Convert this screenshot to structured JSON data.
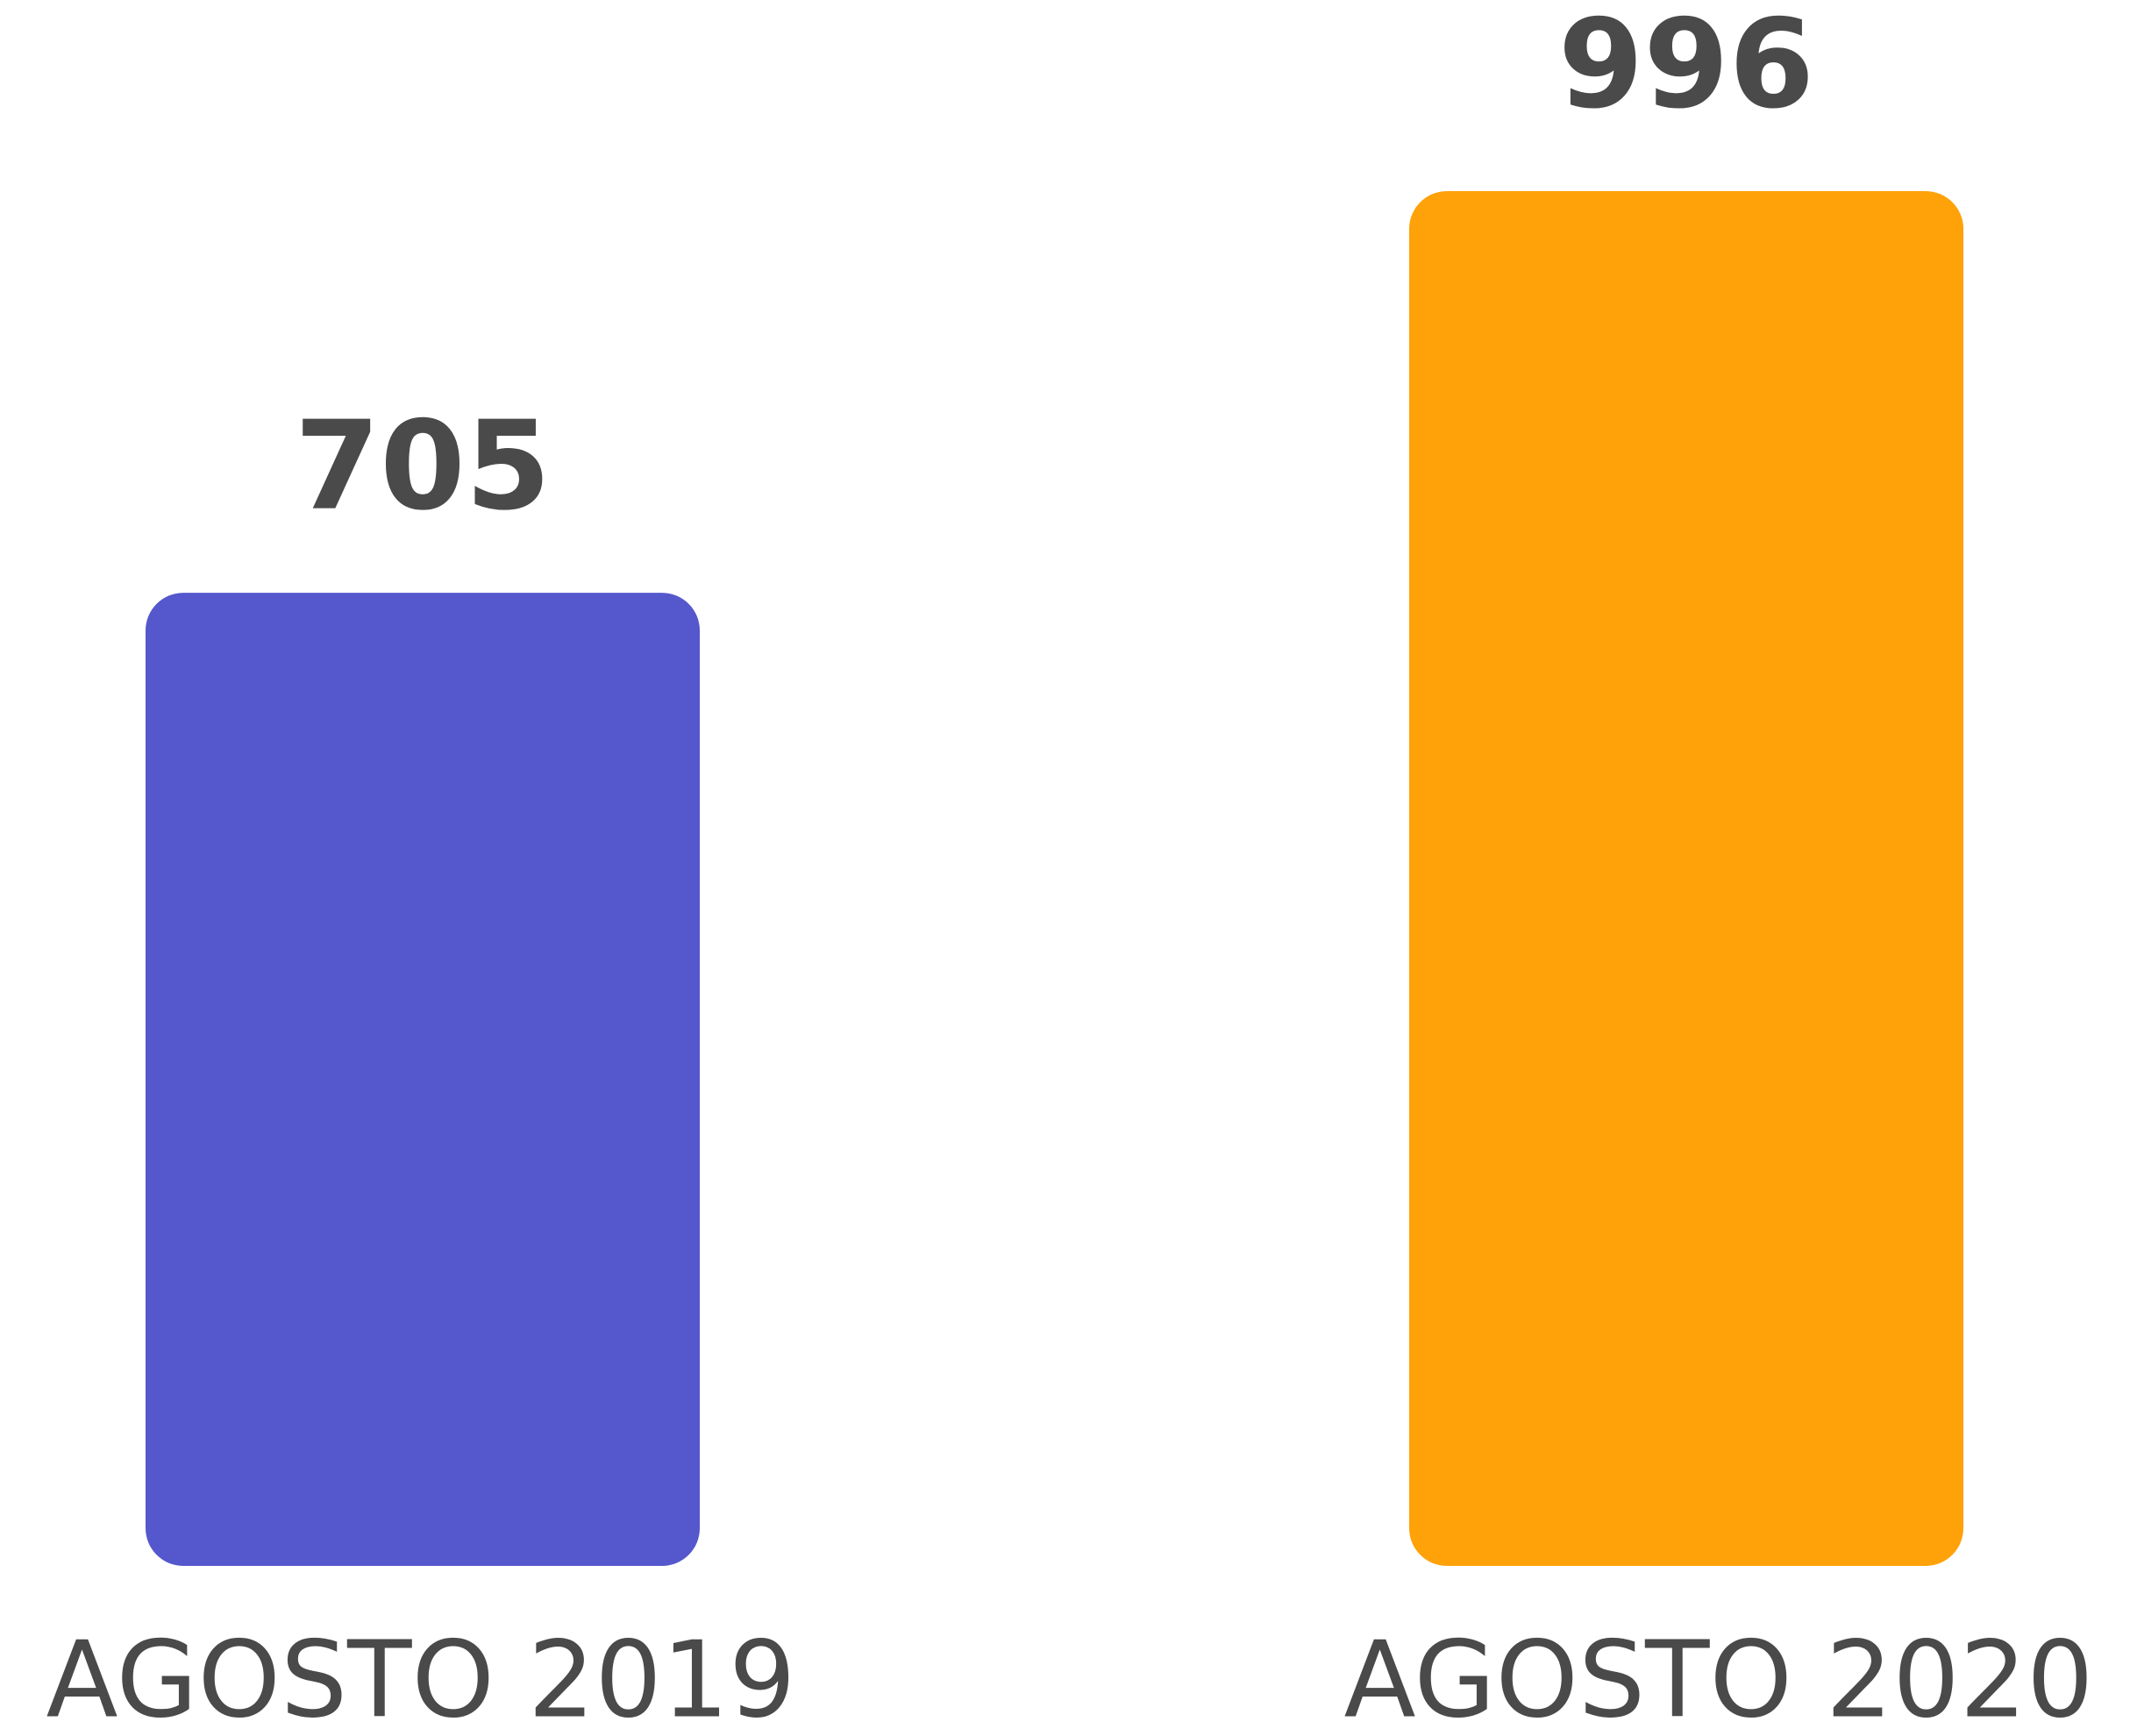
{
  "chart_data": {
    "type": "bar",
    "categories": [
      "AGOSTO 2019",
      "AGOSTO 2020"
    ],
    "values": [
      705,
      996
    ],
    "colors": [
      "#5557cc",
      "#ffa108"
    ]
  }
}
